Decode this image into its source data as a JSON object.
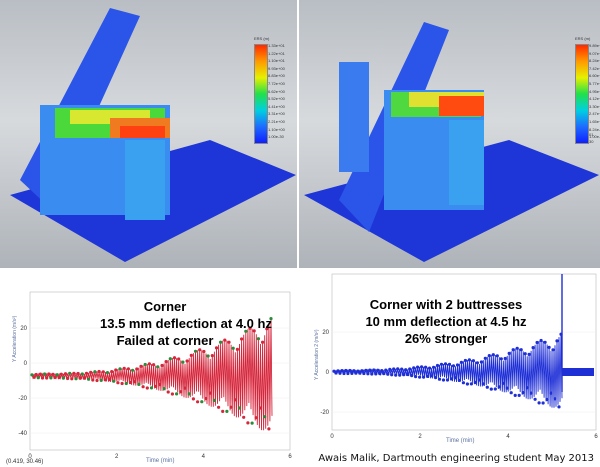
{
  "simulations": [
    {
      "legend_unit": "ERS (m)",
      "legend_ticks": [
        "1.33e+01",
        "1.22e+01",
        "1.10e+01",
        "9.93e+00",
        "8.83e+00",
        "7.72e+00",
        "6.62e+00",
        "5.52e+00",
        "4.41e+00",
        "3.31e+00",
        "2.21e+00",
        "1.10e+00",
        "1.00e-30"
      ]
    },
    {
      "legend_unit": "ERS (m)",
      "legend_ticks": [
        "9.89e+00",
        "9.07e+00",
        "8.24e+00",
        "7.42e+00",
        "6.60e+00",
        "5.77e+00",
        "4.95e+00",
        "4.12e+00",
        "3.30e+00",
        "2.47e+00",
        "1.65e+00",
        "8.24e-01",
        "1.00e-30"
      ]
    }
  ],
  "plots": [
    {
      "ylabel": "Y Acceleration (m/s²)",
      "xlabel": "Time (min)",
      "y_ticks": [
        "20",
        "0",
        "-20",
        "-40"
      ],
      "x_ticks": [
        "0",
        "2",
        "4",
        "6"
      ],
      "coord_readout": "(0.419, 30.46)",
      "overlay": [
        "Corner",
        "13.5 mm deflection at 4.0 hz",
        "Failed at corner"
      ],
      "color": "#d6263c",
      "marker_color": "#2a8c3a"
    },
    {
      "ylabel": "Y Acceleration 2 (m/s²)",
      "xlabel": "Time (min)",
      "y_ticks": [
        "20",
        "0",
        "-20"
      ],
      "x_ticks": [
        "0",
        "2",
        "4",
        "6"
      ],
      "overlay": [
        "Corner with 2 buttresses",
        "10 mm deflection at 4.5 hz",
        "26% stronger"
      ],
      "color": "#1f2fd6"
    }
  ],
  "credit": "Awais Malik, Dartmouth engineering student May 2013"
}
